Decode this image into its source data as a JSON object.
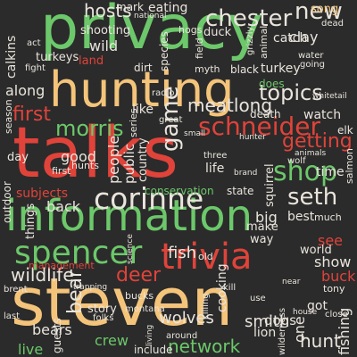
{
  "words": [
    {
      "text": "privacy",
      "color": "green"
    },
    {
      "text": "hunting",
      "color": "peach"
    },
    {
      "text": "talks",
      "color": "red"
    },
    {
      "text": "information",
      "color": "green"
    },
    {
      "text": "corinne",
      "color": "white"
    },
    {
      "text": "steven",
      "color": "peach"
    },
    {
      "text": "trivia",
      "color": "red"
    },
    {
      "text": "spencer",
      "color": "green"
    },
    {
      "text": "schneider",
      "color": "red"
    },
    {
      "text": "shop",
      "color": "green"
    },
    {
      "text": "seth",
      "color": "white"
    },
    {
      "text": "topics",
      "color": "white"
    },
    {
      "text": "chester",
      "color": "white"
    },
    {
      "text": "morris",
      "color": "green"
    },
    {
      "text": "game",
      "color": "white"
    },
    {
      "text": "getting",
      "color": "red"
    },
    {
      "text": "new",
      "color": "white"
    },
    {
      "text": "hosts",
      "color": "white"
    },
    {
      "text": "first",
      "color": "red"
    },
    {
      "text": "deer",
      "color": "red"
    },
    {
      "text": "wildlife",
      "color": "white"
    },
    {
      "text": "fish",
      "color": "white"
    },
    {
      "text": "meatlong",
      "color": "white"
    },
    {
      "text": "bear",
      "color": "white"
    },
    {
      "text": "hunt",
      "color": "white"
    },
    {
      "text": "fishing",
      "color": "white"
    },
    {
      "text": "network",
      "color": "green"
    },
    {
      "text": "smith",
      "color": "white"
    },
    {
      "text": "wolves",
      "color": "white"
    },
    {
      "text": "crew",
      "color": "green"
    },
    {
      "text": "live",
      "color": "green"
    },
    {
      "text": "see",
      "color": "red"
    },
    {
      "text": "show",
      "color": "white"
    },
    {
      "text": "buck",
      "color": "red"
    },
    {
      "text": "one",
      "color": "white"
    },
    {
      "text": "cooking",
      "color": "white"
    },
    {
      "text": "bears",
      "color": "white"
    },
    {
      "text": "dogs",
      "color": "white"
    },
    {
      "text": "lion",
      "color": "white"
    },
    {
      "text": "big",
      "color": "white"
    },
    {
      "text": "back",
      "color": "white"
    },
    {
      "text": "subjects",
      "color": "red"
    },
    {
      "text": "along",
      "color": "white"
    },
    {
      "text": "good",
      "color": "white"
    },
    {
      "text": "like",
      "color": "white"
    },
    {
      "text": "calkins",
      "color": "white"
    },
    {
      "text": "turkey",
      "color": "white"
    },
    {
      "text": "turkeys",
      "color": "white"
    },
    {
      "text": "wild",
      "color": "white"
    },
    {
      "text": "land",
      "color": "red"
    },
    {
      "text": "shooting",
      "color": "white"
    },
    {
      "text": "song",
      "color": "peach"
    },
    {
      "text": "clay",
      "color": "white"
    },
    {
      "text": "catch",
      "color": "white"
    },
    {
      "text": "duck",
      "color": "white"
    },
    {
      "text": "mark",
      "color": "white"
    },
    {
      "text": "eating",
      "color": "white"
    },
    {
      "text": "best",
      "color": "white"
    },
    {
      "text": "time",
      "color": "white"
    },
    {
      "text": "conservation",
      "color": "green"
    },
    {
      "text": "state",
      "color": "white"
    },
    {
      "text": "management",
      "color": "red"
    },
    {
      "text": "world",
      "color": "white"
    },
    {
      "text": "make",
      "color": "white"
    },
    {
      "text": "way",
      "color": "white"
    },
    {
      "text": "public",
      "color": "white"
    },
    {
      "text": "people",
      "color": "white"
    },
    {
      "text": "country",
      "color": "white"
    },
    {
      "text": "life",
      "color": "white"
    },
    {
      "text": "watch",
      "color": "white"
    },
    {
      "text": "death",
      "color": "white"
    },
    {
      "text": "elk",
      "color": "white"
    },
    {
      "text": "does",
      "color": "green"
    },
    {
      "text": "got",
      "color": "white"
    },
    {
      "text": "include",
      "color": "white"
    },
    {
      "text": "guests",
      "color": "white"
    },
    {
      "text": "story",
      "color": "white"
    },
    {
      "text": "things",
      "color": "white"
    },
    {
      "text": "outdoor",
      "color": "white"
    },
    {
      "text": "day",
      "color": "white"
    },
    {
      "text": "series",
      "color": "white"
    },
    {
      "text": "much",
      "color": "white"
    },
    {
      "text": "black",
      "color": "white"
    },
    {
      "text": "myth",
      "color": "white"
    },
    {
      "text": "radio",
      "color": "white"
    },
    {
      "text": "dirt",
      "color": "white"
    },
    {
      "text": "hogs",
      "color": "white"
    },
    {
      "text": "species",
      "color": "white"
    },
    {
      "text": "animal",
      "color": "white"
    },
    {
      "text": "field",
      "color": "white"
    },
    {
      "text": "squirrel",
      "color": "white"
    },
    {
      "text": "season",
      "color": "white"
    },
    {
      "text": "first",
      "color": "white"
    },
    {
      "text": "hunts",
      "color": "white"
    },
    {
      "text": "tony",
      "color": "white"
    },
    {
      "text": "bucks",
      "color": "white"
    },
    {
      "text": "dead",
      "color": "white"
    },
    {
      "text": "water",
      "color": "white"
    },
    {
      "text": "going",
      "color": "white"
    },
    {
      "text": "grizzly",
      "color": "white"
    },
    {
      "text": "salmon",
      "color": "white"
    },
    {
      "text": "three",
      "color": "white"
    },
    {
      "text": "around",
      "color": "white"
    },
    {
      "text": "killing",
      "color": "white"
    },
    {
      "text": "montana",
      "color": "white"
    },
    {
      "text": "wilderness",
      "color": "white"
    },
    {
      "text": "brent",
      "color": "white"
    },
    {
      "text": "last",
      "color": "white"
    },
    {
      "text": "wolf",
      "color": "white"
    },
    {
      "text": "national",
      "color": "white"
    },
    {
      "text": "animals",
      "color": "white"
    },
    {
      "text": "hunter",
      "color": "white"
    },
    {
      "text": "great",
      "color": "white"
    },
    {
      "text": "act",
      "color": "white"
    },
    {
      "text": "fight",
      "color": "white"
    },
    {
      "text": "brand",
      "color": "white"
    },
    {
      "text": "close",
      "color": "white"
    },
    {
      "text": "living",
      "color": "white"
    },
    {
      "text": "whitetail",
      "color": "white"
    },
    {
      "text": "use",
      "color": "white"
    },
    {
      "text": "old",
      "color": "white"
    },
    {
      "text": "trapping",
      "color": "white"
    },
    {
      "text": "science",
      "color": "white"
    },
    {
      "text": "folks",
      "color": "white"
    },
    {
      "text": "small",
      "color": "white"
    },
    {
      "text": "near",
      "color": "white"
    },
    {
      "text": "kill",
      "color": "white"
    },
    {
      "text": "house",
      "color": "white"
    }
  ]
}
